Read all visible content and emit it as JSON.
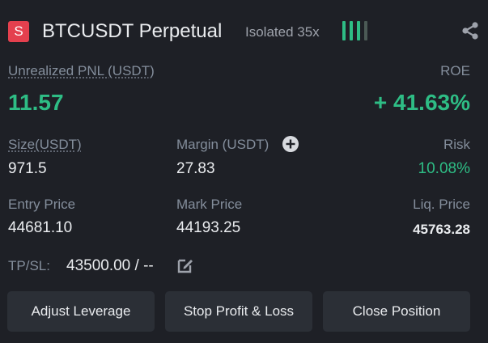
{
  "header": {
    "side_badge": "S",
    "symbol": "BTCUSDT Perpetual",
    "margin_mode": "Isolated 35x",
    "risk_bars": {
      "filled": 3,
      "total": 4,
      "color": "#2ebd85"
    },
    "share_icon": "share-icon"
  },
  "pnl": {
    "label": "Unrealized PNL (USDT)",
    "value": "11.57",
    "roe_label": "ROE",
    "roe_value": "+ 41.63%"
  },
  "stats_row1": {
    "size_label": "Size(USDT)",
    "size_value": "971.5",
    "margin_label": "Margin (USDT)",
    "margin_value": "27.83",
    "risk_label": "Risk",
    "risk_value": "10.08%"
  },
  "stats_row2": {
    "entry_label": "Entry Price",
    "entry_value": "44681.10",
    "mark_label": "Mark Price",
    "mark_value": "44193.25",
    "liq_label": "Liq. Price",
    "liq_value": "45763.28"
  },
  "tpsl": {
    "label": "TP/SL:",
    "value": "43500.00 / --"
  },
  "actions": {
    "adjust_leverage": "Adjust Leverage",
    "stop_profit_loss": "Stop Profit & Loss",
    "close_position": "Close Position"
  },
  "colors": {
    "background": "#1e2026",
    "green": "#2ebd85",
    "red_badge": "#e4404e",
    "button_bg": "#2b2f36"
  }
}
